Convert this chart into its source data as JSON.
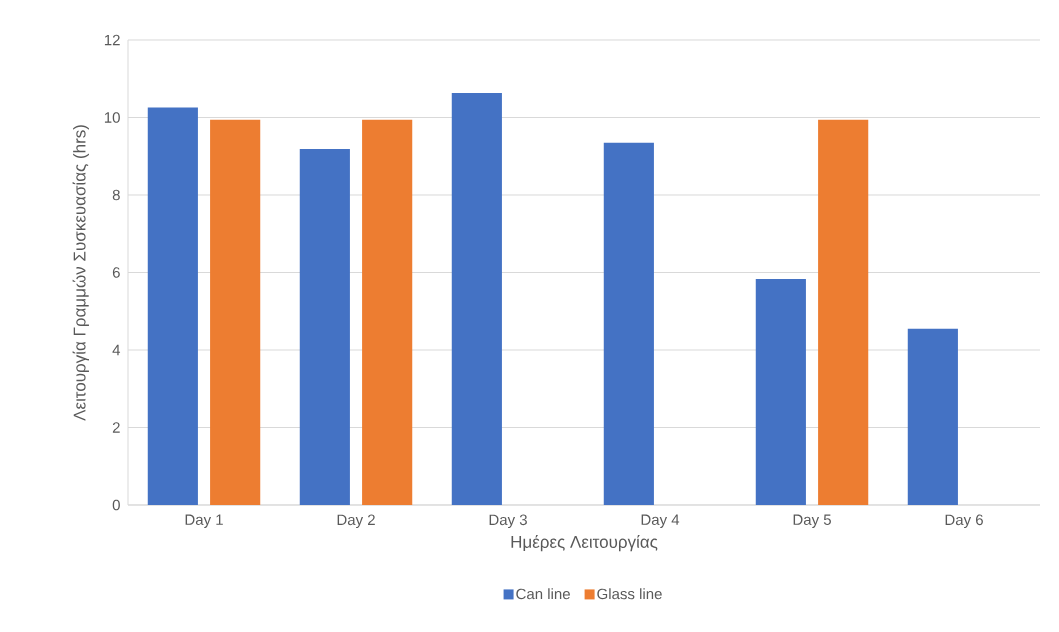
{
  "chart_data": {
    "type": "bar",
    "categories": [
      "Day 1",
      "Day 2",
      "Day 3",
      "Day 4",
      "Day 5",
      "Day 6"
    ],
    "xlabel": "Ημέρες Λειτουργίας",
    "ylabel": "Λειτουργία Γραμμών Συσκευασίας (hrs)",
    "series": [
      {
        "name": "Can line",
        "color": "#4472c4",
        "values": [
          10.26,
          9.19,
          10.63,
          9.35,
          5.83,
          4.55
        ]
      },
      {
        "name": "Glass line",
        "color": "#ed7d31",
        "values": [
          9.94,
          9.94,
          null,
          null,
          9.94,
          null
        ]
      }
    ],
    "ylim": [
      0,
      12
    ],
    "yticks": [
      0,
      2,
      4,
      6,
      8,
      10,
      12
    ],
    "grid": "y",
    "legend": "bottom"
  }
}
